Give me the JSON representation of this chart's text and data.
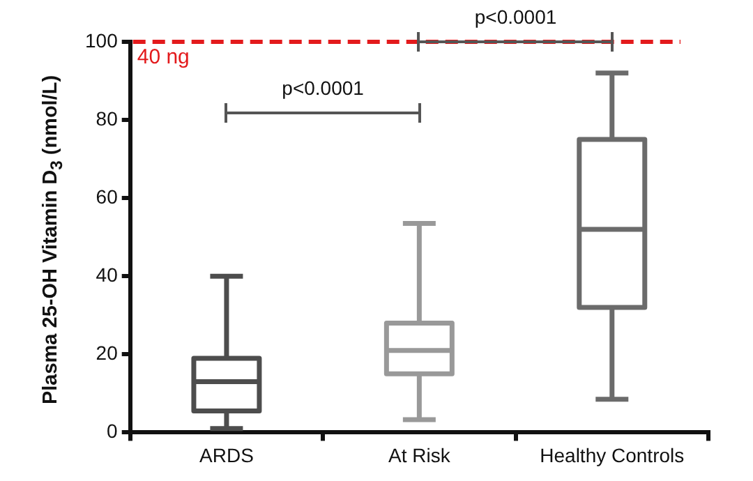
{
  "chart_data": {
    "type": "box",
    "ylabel": "Plasma 25-OH Vitamin D$_{3}$ (nmol/L)",
    "categories": [
      "ARDS",
      "At Risk",
      "Healthy Controls"
    ],
    "colors": [
      "#4d4d4d",
      "#999999",
      "#6b6b6b"
    ],
    "boxes": [
      {
        "low": 1,
        "q1": 5.5,
        "median": 13,
        "q3": 19,
        "high": 40
      },
      {
        "low": 3.3,
        "q1": 15,
        "median": 21,
        "q3": 28,
        "high": 53.5
      },
      {
        "low": 8.5,
        "q1": 32,
        "median": 52,
        "q3": 75,
        "high": 92
      }
    ],
    "ylim": [
      0,
      100
    ],
    "yticks": [
      0,
      20,
      40,
      60,
      80,
      100
    ],
    "ref_lines": [
      {
        "axis": "y",
        "value": 100,
        "label": "40 ng",
        "color": "#e31a1c",
        "line_style": "dashed"
      }
    ],
    "annotations": [
      "p<0.0001",
      "p<0.0001"
    ],
    "legend": false
  }
}
